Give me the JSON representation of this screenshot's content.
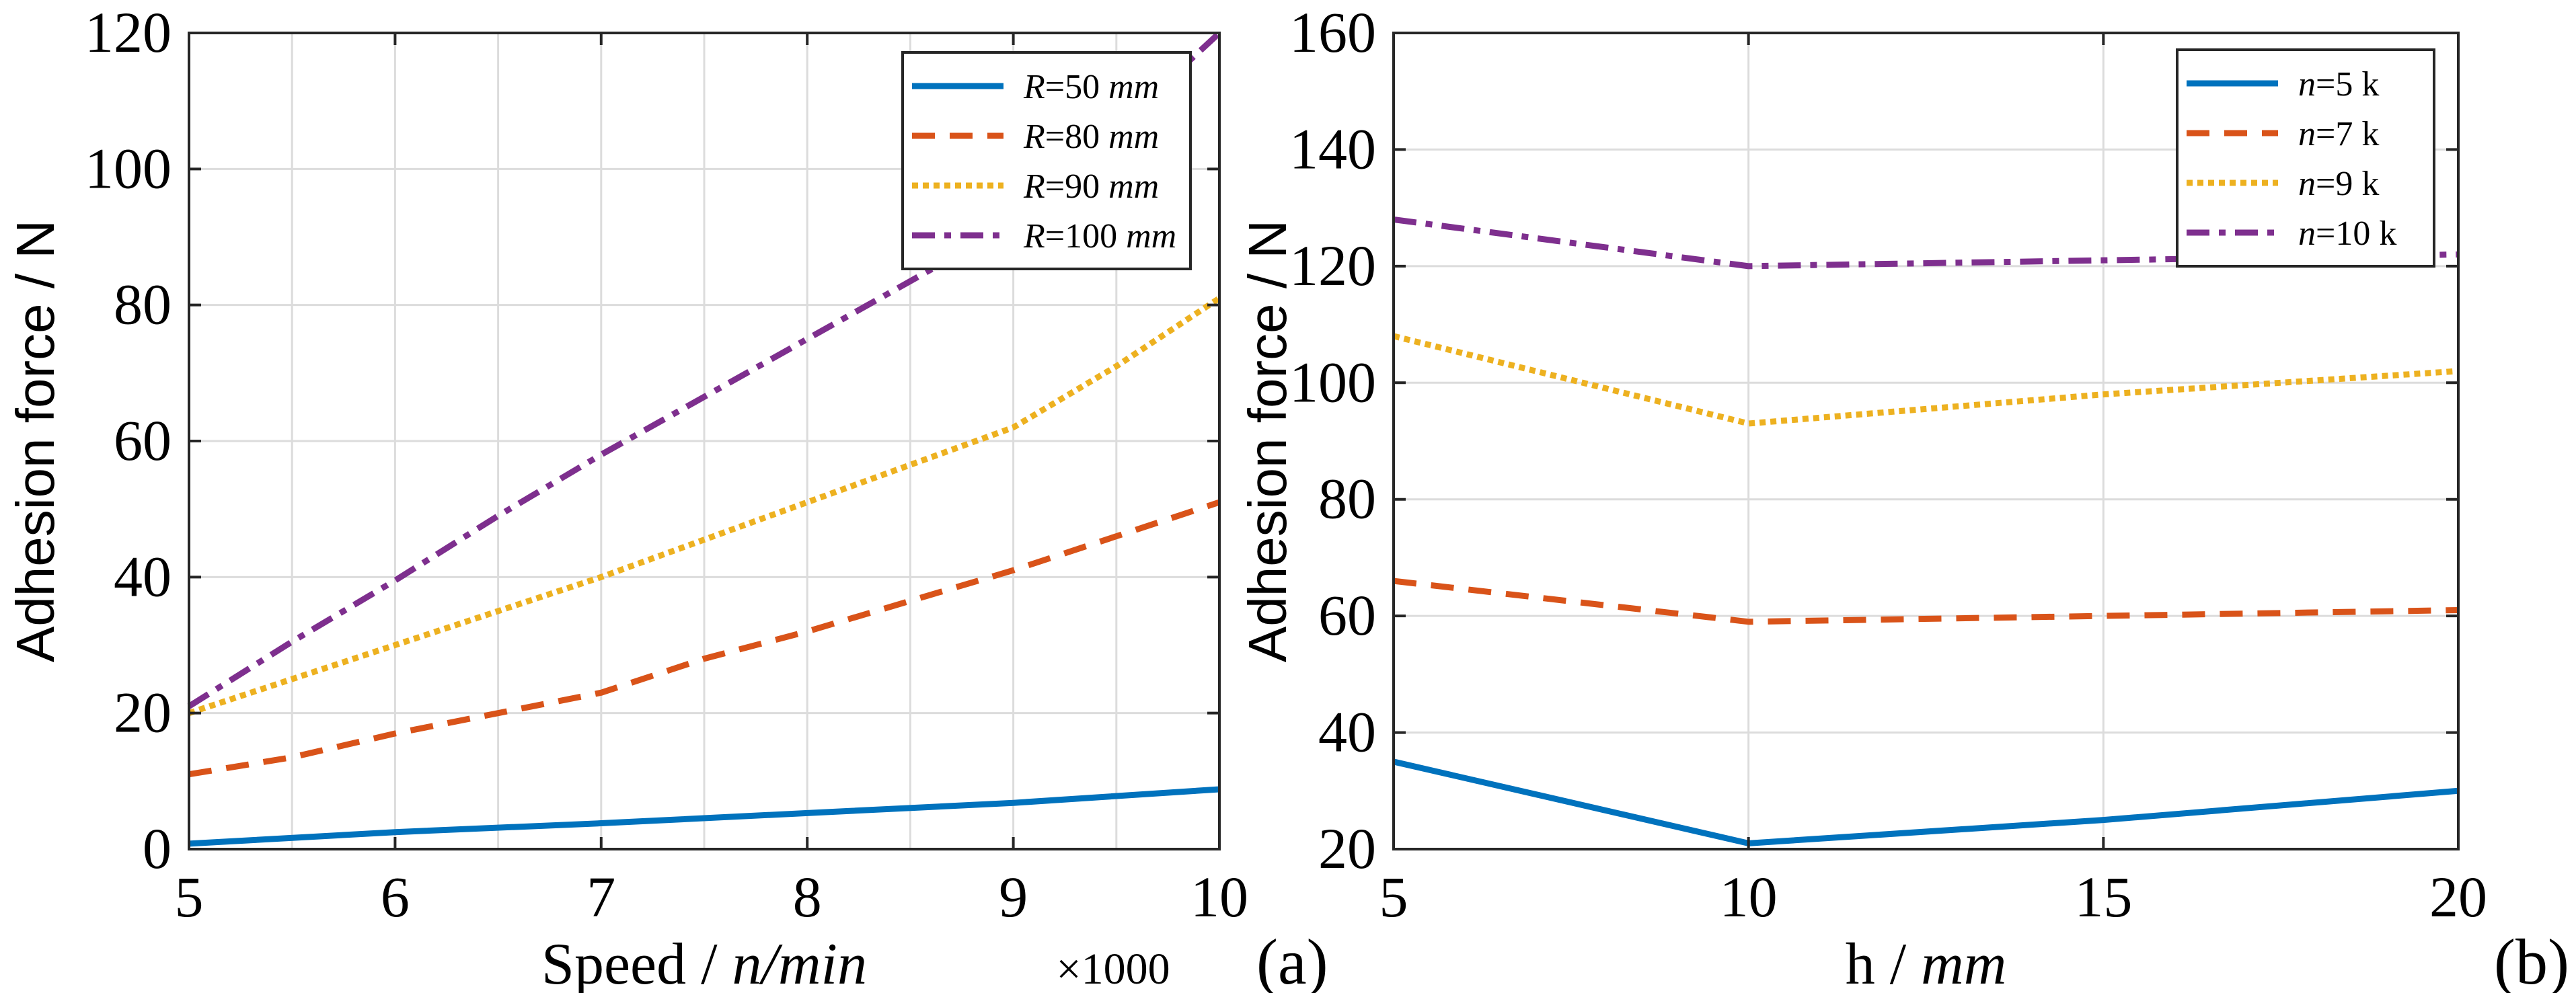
{
  "colors": {
    "s1": "#0072BD",
    "s2": "#D95319",
    "s3": "#EDB120",
    "s4": "#7E2F8E"
  },
  "chart_data": [
    {
      "type": "line",
      "panel_label": "(a)",
      "xlabel_plain": "Speed / ",
      "xlabel_italic": "n/min",
      "x_multiplier": "×1000",
      "ylabel": "Adhesion force / N",
      "xlim": [
        5,
        10
      ],
      "ylim": [
        0,
        120
      ],
      "xticks": [
        "5",
        "6",
        "7",
        "8",
        "9",
        "10"
      ],
      "xtick_values": [
        5,
        6,
        7,
        8,
        9,
        10
      ],
      "xgrid": [
        5,
        5.5,
        6,
        6.5,
        7,
        7.5,
        8,
        8.5,
        9,
        9.5,
        10
      ],
      "yticks": [
        "0",
        "20",
        "40",
        "60",
        "80",
        "100",
        "120"
      ],
      "ytick_values": [
        0,
        20,
        40,
        60,
        80,
        100,
        120
      ],
      "grid": true,
      "legend_placement": "top-right",
      "series": [
        {
          "name_italic": "R",
          "name_rest": "=50 ",
          "unit": "mm",
          "style": "solid",
          "x": [
            5,
            6,
            7,
            8,
            9,
            10
          ],
          "values": [
            0.8,
            2.5,
            3.8,
            5.3,
            6.8,
            8.8
          ]
        },
        {
          "name_italic": "R",
          "name_rest": "=80 ",
          "unit": "mm",
          "style": "dashed",
          "x": [
            5,
            5.5,
            6,
            6.5,
            7,
            7.5,
            8,
            8.5,
            9,
            9.5,
            10
          ],
          "values": [
            11,
            13.5,
            17,
            20,
            23,
            28,
            32,
            36.5,
            41,
            46,
            51
          ]
        },
        {
          "name_italic": "R",
          "name_rest": "=90 ",
          "unit": "mm",
          "style": "dotted",
          "x": [
            5,
            6,
            7,
            8,
            9,
            9.5,
            10
          ],
          "values": [
            20,
            30,
            40,
            51,
            62,
            71,
            81
          ]
        },
        {
          "name_italic": "R",
          "name_rest": "=100 ",
          "unit": "mm",
          "style": "dashdot",
          "x": [
            5,
            5.5,
            6,
            6.5,
            7,
            8,
            9,
            10
          ],
          "values": [
            21,
            30.5,
            39.5,
            49,
            58,
            75,
            92,
            120
          ]
        }
      ]
    },
    {
      "type": "line",
      "panel_label": "(b)",
      "xlabel_plain": "h / ",
      "xlabel_italic": "mm",
      "ylabel": "Adhesion force / N",
      "xlim": [
        5,
        20
      ],
      "ylim": [
        20,
        160
      ],
      "xticks": [
        "5",
        "10",
        "15",
        "20"
      ],
      "xtick_values": [
        5,
        10,
        15,
        20
      ],
      "xgrid": [
        5,
        10,
        15,
        20
      ],
      "yticks": [
        "20",
        "40",
        "60",
        "80",
        "100",
        "120",
        "140",
        "160"
      ],
      "ytick_values": [
        20,
        40,
        60,
        80,
        100,
        120,
        140,
        160
      ],
      "grid": true,
      "legend_placement": "top-right",
      "series": [
        {
          "name_italic": "n",
          "name_rest": "=5 k",
          "unit": "",
          "style": "solid",
          "x": [
            5,
            10,
            15,
            20
          ],
          "values": [
            35,
            21,
            25,
            30
          ]
        },
        {
          "name_italic": "n",
          "name_rest": "=7 k",
          "unit": "",
          "style": "dashed",
          "x": [
            5,
            10,
            15,
            20
          ],
          "values": [
            66,
            59,
            60,
            61
          ]
        },
        {
          "name_italic": "n",
          "name_rest": "=9 k",
          "unit": "",
          "style": "dotted",
          "x": [
            5,
            10,
            15,
            20
          ],
          "values": [
            108,
            93,
            98,
            102
          ]
        },
        {
          "name_italic": "n",
          "name_rest": "=10 k",
          "unit": "",
          "style": "dashdot",
          "x": [
            5,
            10,
            15,
            20
          ],
          "values": [
            128,
            120,
            121,
            122
          ]
        }
      ]
    }
  ]
}
